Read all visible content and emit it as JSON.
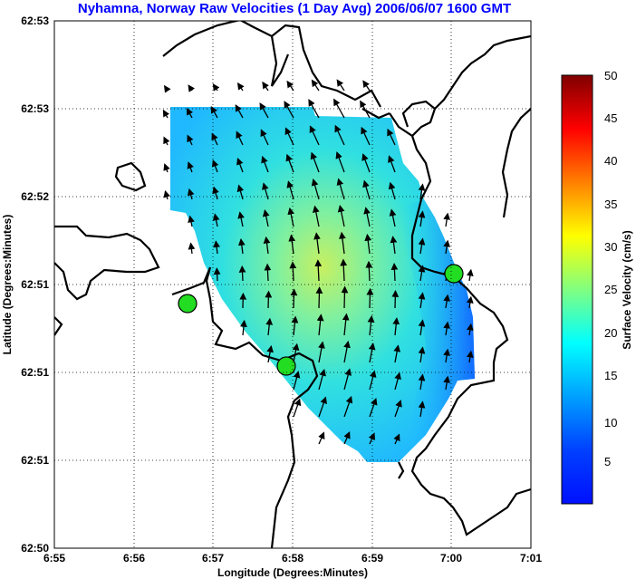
{
  "chart_data": {
    "type": "vector-field-map",
    "title": "Nyhamna, Norway Raw Velocities (1 Day Avg) 2006/06/07 1600 GMT",
    "xlabel": "Longitude (Degrees:Minutes)",
    "ylabel": "Latitude (Degrees:Minutes)",
    "colorbar_label": "Surface Velocity (cm/s)",
    "x_ticks": [
      "6:55",
      "6:56",
      "6:57",
      "6:58",
      "6:59",
      "7:00",
      "7:01"
    ],
    "y_ticks": [
      "62:50",
      "62:51",
      "62:51",
      "62:51",
      "62:52",
      "62:53",
      "62:53"
    ],
    "colorbar_ticks": [
      "5",
      "10",
      "15",
      "20",
      "25",
      "30",
      "35",
      "40",
      "45",
      "50"
    ],
    "colorbar_range": [
      0,
      50
    ],
    "grid": true,
    "stations": [
      {
        "lon": 6.945,
        "lat": 0.73
      },
      {
        "lon": 6.98,
        "lat": 0.21
      },
      {
        "lon": 7.0,
        "lat": 0.89
      }
    ],
    "field_peak_speed_cm_s": 22
  }
}
